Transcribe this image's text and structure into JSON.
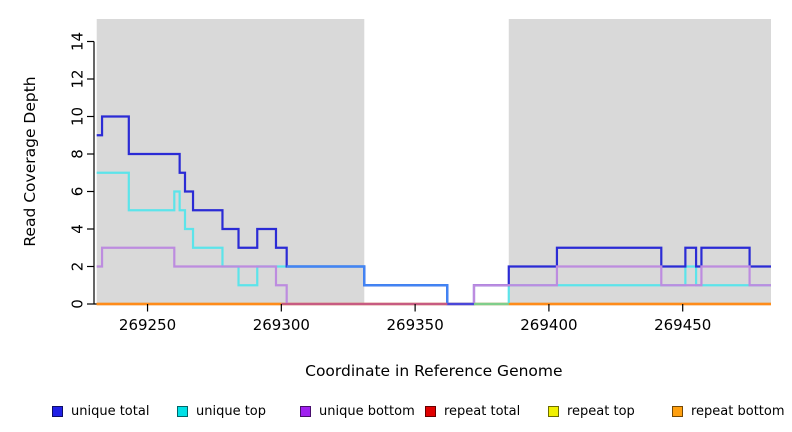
{
  "figure": {
    "xlabel": "Coordinate in Reference Genome",
    "ylabel": "Read Coverage Depth"
  },
  "chart_data": {
    "type": "line",
    "subtype": "step-coverage",
    "title": "",
    "xlabel": "Coordinate in Reference Genome",
    "ylabel": "Read Coverage Depth",
    "xlim": [
      269231,
      269483
    ],
    "ylim": [
      0,
      15.2
    ],
    "xticks": [
      269250,
      269300,
      269350,
      269400,
      269450
    ],
    "yticks": [
      0,
      2,
      4,
      6,
      8,
      10,
      12,
      14
    ],
    "grid": false,
    "background_shading": {
      "color": "#D9D9D9",
      "regions": [
        [
          269231,
          269331
        ],
        [
          269385,
          269483
        ]
      ]
    },
    "series": [
      {
        "name": "unique total",
        "color": "#2B2BD5",
        "steps": [
          [
            269231,
            9
          ],
          [
            269233,
            10
          ],
          [
            269243,
            8
          ],
          [
            269262,
            7
          ],
          [
            269264,
            6
          ],
          [
            269267,
            5
          ],
          [
            269278,
            4
          ],
          [
            269284,
            3
          ],
          [
            269291,
            4
          ],
          [
            269298,
            3
          ],
          [
            269302,
            2
          ],
          [
            269331,
            1
          ],
          [
            269362,
            0
          ],
          [
            269372,
            1
          ],
          [
            269385,
            2
          ],
          [
            269403,
            3
          ],
          [
            269442,
            2
          ],
          [
            269451,
            3
          ],
          [
            269455,
            2
          ],
          [
            269457,
            3
          ],
          [
            269475,
            2
          ],
          [
            269483,
            2
          ]
        ]
      },
      {
        "name": "unique top",
        "color": "#5CE4EA",
        "steps": [
          [
            269231,
            7
          ],
          [
            269243,
            5
          ],
          [
            269260,
            6
          ],
          [
            269262,
            5
          ],
          [
            269264,
            4
          ],
          [
            269267,
            3
          ],
          [
            269278,
            2
          ],
          [
            269284,
            1
          ],
          [
            269291,
            2
          ],
          [
            269331,
            1
          ],
          [
            269362,
            0
          ],
          [
            269385,
            1
          ],
          [
            269451,
            2
          ],
          [
            269455,
            1
          ],
          [
            269483,
            1
          ]
        ]
      },
      {
        "name": "unique bottom",
        "color": "#BD8CDF",
        "steps": [
          [
            269231,
            2
          ],
          [
            269233,
            3
          ],
          [
            269260,
            2
          ],
          [
            269298,
            1
          ],
          [
            269302,
            0
          ],
          [
            269372,
            1
          ],
          [
            269403,
            2
          ],
          [
            269442,
            1
          ],
          [
            269457,
            2
          ],
          [
            269475,
            1
          ],
          [
            269483,
            1
          ]
        ]
      },
      {
        "name": "repeat total",
        "color": "#CC2222",
        "steps": [
          [
            269231,
            0
          ],
          [
            269483,
            0
          ]
        ]
      },
      {
        "name": "repeat top",
        "color": "#EDED44",
        "steps": [
          [
            269231,
            0
          ],
          [
            269483,
            0
          ]
        ]
      },
      {
        "name": "repeat bottom",
        "color": "#FF8C1A",
        "steps": [
          [
            269231,
            0
          ],
          [
            269483,
            0
          ]
        ]
      }
    ],
    "overlay_blends": {
      "azure_line": {
        "color": "#4285F4",
        "steps": [
          [
            269302,
            2
          ],
          [
            269331,
            1
          ],
          [
            269362,
            0
          ]
        ]
      },
      "baseline_segments": [
        {
          "from": 269231,
          "to": 269300,
          "color": "#FF8C1A"
        },
        {
          "from": 269300,
          "to": 269362,
          "color": "#C75B82"
        },
        {
          "from": 269362,
          "to": 269372,
          "color": "#4A46D9"
        },
        {
          "from": 269372,
          "to": 269385,
          "color": "#7FCE8B"
        },
        {
          "from": 269385,
          "to": 269483,
          "color": "#FF8C1A"
        }
      ]
    },
    "legend": {
      "position": "bottom",
      "items": [
        {
          "label": "unique total",
          "color": "#2020E6"
        },
        {
          "label": "unique top",
          "color": "#00E0E6"
        },
        {
          "label": "unique bottom",
          "color": "#A020F0"
        },
        {
          "label": "repeat total",
          "color": "#E00000"
        },
        {
          "label": "repeat top",
          "color": "#F0F000"
        },
        {
          "label": "repeat bottom",
          "color": "#FFA010"
        }
      ]
    }
  }
}
